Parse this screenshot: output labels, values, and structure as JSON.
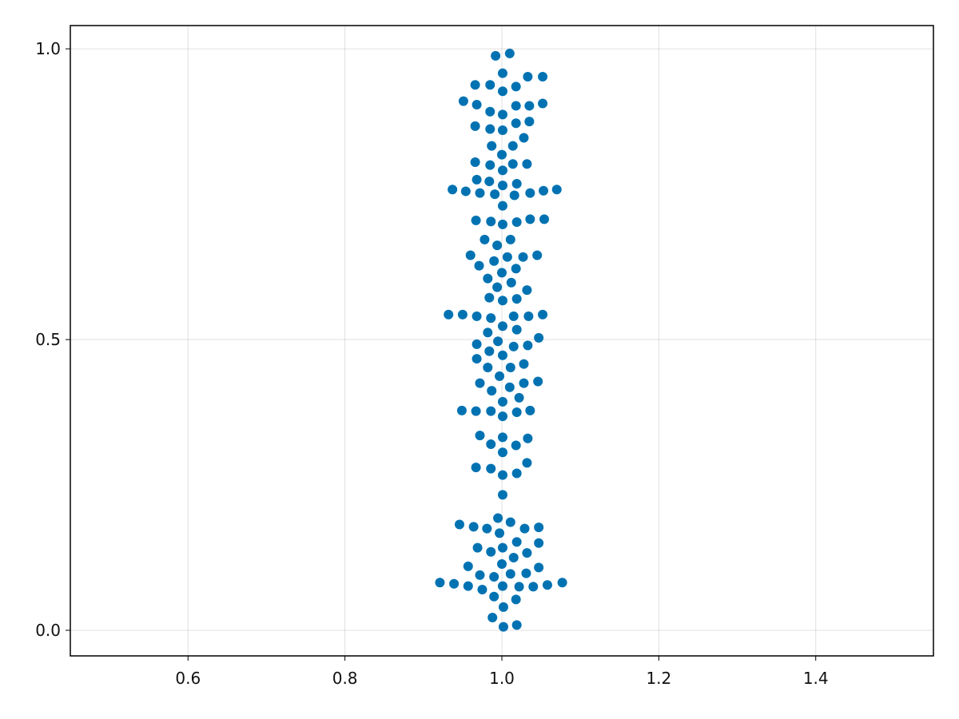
{
  "colors": {
    "marker": "#0072b2",
    "grid": "#e6e6e6",
    "frame": "#000000"
  },
  "chart_data": {
    "type": "scatter",
    "title": "",
    "xlabel": "",
    "ylabel": "",
    "xlim": [
      0.45,
      1.55
    ],
    "ylim": [
      -0.044,
      1.04
    ],
    "grid": true,
    "xticks": [
      0.6,
      0.8,
      1.0,
      1.2,
      1.4
    ],
    "xtick_labels": [
      "0.6",
      "0.8",
      "1.0",
      "1.2",
      "1.4"
    ],
    "yticks": [
      0.0,
      0.5,
      1.0
    ],
    "ytick_labels": [
      "0.0",
      "0.5",
      "1.0"
    ],
    "series": [
      {
        "points": [
          [
            0.992,
            0.988
          ],
          [
            1.01,
            0.992
          ],
          [
            1.001,
            0.958
          ],
          [
            0.966,
            0.938
          ],
          [
            0.985,
            0.938
          ],
          [
            1.033,
            0.952
          ],
          [
            1.052,
            0.952
          ],
          [
            1.018,
            0.935
          ],
          [
            1.001,
            0.927
          ],
          [
            0.951,
            0.91
          ],
          [
            0.968,
            0.904
          ],
          [
            1.018,
            0.902
          ],
          [
            1.035,
            0.902
          ],
          [
            1.052,
            0.906
          ],
          [
            0.985,
            0.892
          ],
          [
            1.001,
            0.887
          ],
          [
            1.018,
            0.872
          ],
          [
            1.035,
            0.875
          ],
          [
            0.966,
            0.867
          ],
          [
            0.985,
            0.862
          ],
          [
            1.001,
            0.86
          ],
          [
            1.028,
            0.847
          ],
          [
            0.987,
            0.833
          ],
          [
            1.014,
            0.833
          ],
          [
            1.0,
            0.818
          ],
          [
            0.966,
            0.805
          ],
          [
            0.985,
            0.8
          ],
          [
            1.014,
            0.802
          ],
          [
            1.032,
            0.802
          ],
          [
            1.001,
            0.791
          ],
          [
            0.968,
            0.775
          ],
          [
            0.984,
            0.772
          ],
          [
            1.019,
            0.768
          ],
          [
            0.937,
            0.758
          ],
          [
            0.954,
            0.755
          ],
          [
            0.972,
            0.752
          ],
          [
            0.991,
            0.75
          ],
          [
            1.001,
            0.765
          ],
          [
            1.036,
            0.752
          ],
          [
            1.053,
            0.756
          ],
          [
            1.07,
            0.758
          ],
          [
            1.016,
            0.748
          ],
          [
            1.001,
            0.73
          ],
          [
            0.967,
            0.705
          ],
          [
            0.986,
            0.703
          ],
          [
            1.001,
            0.698
          ],
          [
            1.019,
            0.702
          ],
          [
            1.036,
            0.707
          ],
          [
            1.054,
            0.707
          ],
          [
            0.978,
            0.672
          ],
          [
            1.011,
            0.672
          ],
          [
            0.994,
            0.662
          ],
          [
            0.96,
            0.645
          ],
          [
            1.007,
            0.642
          ],
          [
            1.027,
            0.642
          ],
          [
            1.045,
            0.645
          ],
          [
            0.971,
            0.627
          ],
          [
            0.99,
            0.635
          ],
          [
            1.018,
            0.622
          ],
          [
            1.0,
            0.615
          ],
          [
            0.982,
            0.605
          ],
          [
            1.012,
            0.598
          ],
          [
            0.994,
            0.59
          ],
          [
            1.032,
            0.585
          ],
          [
            0.984,
            0.572
          ],
          [
            1.001,
            0.567
          ],
          [
            1.019,
            0.57
          ],
          [
            0.932,
            0.543
          ],
          [
            0.95,
            0.543
          ],
          [
            0.968,
            0.54
          ],
          [
            0.986,
            0.537
          ],
          [
            1.015,
            0.54
          ],
          [
            1.034,
            0.54
          ],
          [
            1.052,
            0.543
          ],
          [
            1.001,
            0.523
          ],
          [
            0.982,
            0.512
          ],
          [
            1.047,
            0.503
          ],
          [
            1.019,
            0.517
          ],
          [
            0.968,
            0.492
          ],
          [
            0.995,
            0.497
          ],
          [
            1.015,
            0.488
          ],
          [
            1.033,
            0.49
          ],
          [
            0.984,
            0.48
          ],
          [
            1.001,
            0.473
          ],
          [
            0.968,
            0.467
          ],
          [
            1.028,
            0.458
          ],
          [
            0.982,
            0.452
          ],
          [
            1.011,
            0.452
          ],
          [
            0.997,
            0.437
          ],
          [
            0.972,
            0.425
          ],
          [
            1.028,
            0.425
          ],
          [
            1.046,
            0.428
          ],
          [
            0.987,
            0.412
          ],
          [
            1.01,
            0.418
          ],
          [
            1.022,
            0.4
          ],
          [
            1.001,
            0.393
          ],
          [
            0.949,
            0.378
          ],
          [
            0.967,
            0.377
          ],
          [
            0.986,
            0.377
          ],
          [
            1.001,
            0.368
          ],
          [
            1.019,
            0.375
          ],
          [
            1.036,
            0.378
          ],
          [
            0.972,
            0.335
          ],
          [
            1.001,
            0.332
          ],
          [
            1.033,
            0.33
          ],
          [
            0.986,
            0.32
          ],
          [
            1.018,
            0.318
          ],
          [
            1.001,
            0.306
          ],
          [
            0.967,
            0.28
          ],
          [
            0.986,
            0.278
          ],
          [
            1.032,
            0.288
          ],
          [
            1.001,
            0.267
          ],
          [
            1.019,
            0.27
          ],
          [
            1.001,
            0.233
          ],
          [
            0.995,
            0.193
          ],
          [
            1.011,
            0.186
          ],
          [
            0.946,
            0.182
          ],
          [
            0.964,
            0.178
          ],
          [
            0.981,
            0.175
          ],
          [
            0.997,
            0.167
          ],
          [
            1.029,
            0.175
          ],
          [
            1.047,
            0.177
          ],
          [
            1.019,
            0.152
          ],
          [
            1.047,
            0.15
          ],
          [
            0.969,
            0.142
          ],
          [
            1.001,
            0.142
          ],
          [
            0.986,
            0.135
          ],
          [
            1.032,
            0.133
          ],
          [
            1.015,
            0.125
          ],
          [
            0.957,
            0.11
          ],
          [
            1.0,
            0.114
          ],
          [
            1.047,
            0.108
          ],
          [
            0.972,
            0.095
          ],
          [
            0.99,
            0.092
          ],
          [
            1.011,
            0.097
          ],
          [
            1.031,
            0.098
          ],
          [
            0.921,
            0.082
          ],
          [
            0.939,
            0.08
          ],
          [
            0.957,
            0.076
          ],
          [
            0.975,
            0.07
          ],
          [
            1.001,
            0.076
          ],
          [
            1.022,
            0.075
          ],
          [
            1.04,
            0.075
          ],
          [
            1.058,
            0.078
          ],
          [
            1.077,
            0.082
          ],
          [
            0.99,
            0.058
          ],
          [
            1.018,
            0.053
          ],
          [
            1.002,
            0.04
          ],
          [
            0.988,
            0.022
          ],
          [
            1.002,
            0.006
          ],
          [
            1.019,
            0.009
          ]
        ]
      }
    ]
  }
}
